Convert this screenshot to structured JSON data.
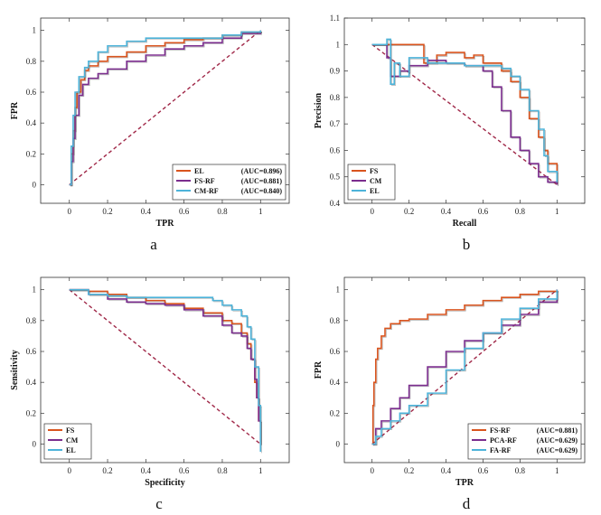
{
  "figure_labels": [
    "a",
    "b",
    "c",
    "d"
  ],
  "chart_data": [
    {
      "type": "line",
      "panel": "a",
      "xlabel": "TPR",
      "ylabel": "FPR",
      "xlim": [
        -0.15,
        1.15
      ],
      "ylim": [
        -0.12,
        1.08
      ],
      "xticks": [
        0,
        0.2,
        0.4,
        0.6,
        0.8,
        1
      ],
      "yticks": [
        0,
        0.2,
        0.4,
        0.6,
        0.8,
        1
      ],
      "tick_labels_x": [
        "0",
        "0.2",
        "0.4",
        "0.6",
        "0.8",
        "1"
      ],
      "tick_labels_y": [
        "0",
        "0.2",
        "0.4",
        "0.6",
        "0.8",
        "1"
      ],
      "legend_position": "bottom-right",
      "reference_line": {
        "x": [
          0,
          1
        ],
        "y": [
          0,
          1
        ],
        "color": "#a02848"
      },
      "series": [
        {
          "name": "EL",
          "annotation": "(AUC=0.896)",
          "color": "#d9541e",
          "x": [
            0,
            0.01,
            0.02,
            0.03,
            0.04,
            0.06,
            0.08,
            0.1,
            0.15,
            0.2,
            0.3,
            0.4,
            0.5,
            0.6,
            0.7,
            0.8,
            0.9,
            1.0
          ],
          "y": [
            0,
            0.2,
            0.35,
            0.5,
            0.6,
            0.68,
            0.74,
            0.77,
            0.8,
            0.83,
            0.86,
            0.9,
            0.92,
            0.94,
            0.95,
            0.97,
            0.99,
            1.0
          ]
        },
        {
          "name": "FS-RF",
          "annotation": "(AUC=0.881)",
          "color": "#7b2d8e",
          "x": [
            0,
            0.01,
            0.02,
            0.03,
            0.05,
            0.07,
            0.1,
            0.15,
            0.2,
            0.3,
            0.4,
            0.5,
            0.6,
            0.7,
            0.8,
            0.9,
            1.0
          ],
          "y": [
            0,
            0.15,
            0.3,
            0.45,
            0.58,
            0.65,
            0.69,
            0.72,
            0.75,
            0.8,
            0.84,
            0.88,
            0.9,
            0.92,
            0.95,
            0.98,
            1.0
          ]
        },
        {
          "name": "CM-RF",
          "annotation": "(AUC=0.840)",
          "color": "#4db3d9",
          "x": [
            0,
            0.01,
            0.02,
            0.03,
            0.05,
            0.08,
            0.1,
            0.15,
            0.2,
            0.3,
            0.4,
            0.5,
            0.6,
            0.7,
            0.8,
            0.9,
            1.0
          ],
          "y": [
            0,
            0.25,
            0.45,
            0.6,
            0.7,
            0.76,
            0.8,
            0.86,
            0.9,
            0.93,
            0.95,
            0.95,
            0.95,
            0.95,
            0.97,
            0.99,
            1.0
          ]
        }
      ]
    },
    {
      "type": "line",
      "panel": "b",
      "xlabel": "Recall",
      "ylabel": "Precision",
      "xlim": [
        -0.15,
        1.15
      ],
      "ylim": [
        0.4,
        1.1
      ],
      "xticks": [
        0,
        0.2,
        0.4,
        0.6,
        0.8,
        1
      ],
      "yticks": [
        0.4,
        0.5,
        0.6,
        0.7,
        0.8,
        0.9,
        1,
        1.1
      ],
      "tick_labels_x": [
        "0",
        "0.2",
        "0.4",
        "0.6",
        "0.8",
        "1"
      ],
      "tick_labels_y": [
        "0.4",
        "0.5",
        "0.6",
        "0.7",
        "0.8",
        "0.9",
        "1",
        "1.1"
      ],
      "legend_position": "bottom-left",
      "reference_line": {
        "x": [
          0,
          1
        ],
        "y": [
          1,
          0.47
        ],
        "color": "#a02848"
      },
      "series": [
        {
          "name": "FS",
          "color": "#d9541e",
          "x": [
            0,
            0.08,
            0.1,
            0.15,
            0.2,
            0.27,
            0.28,
            0.35,
            0.4,
            0.5,
            0.55,
            0.6,
            0.7,
            0.75,
            0.8,
            0.85,
            0.9,
            0.93,
            0.95,
            1.0
          ],
          "y": [
            1.0,
            1.0,
            1.0,
            1.0,
            1.0,
            1.0,
            0.93,
            0.96,
            0.97,
            0.95,
            0.96,
            0.93,
            0.9,
            0.86,
            0.8,
            0.72,
            0.65,
            0.6,
            0.55,
            0.47
          ]
        },
        {
          "name": "CM",
          "color": "#7b2d8e",
          "x": [
            0,
            0.08,
            0.1,
            0.15,
            0.2,
            0.3,
            0.4,
            0.5,
            0.6,
            0.65,
            0.7,
            0.75,
            0.8,
            0.85,
            0.9,
            0.95,
            1.0
          ],
          "y": [
            1.0,
            0.95,
            0.88,
            0.9,
            0.92,
            0.94,
            0.93,
            0.92,
            0.9,
            0.84,
            0.75,
            0.65,
            0.6,
            0.55,
            0.5,
            0.48,
            0.47
          ]
        },
        {
          "name": "EL",
          "color": "#4db3d9",
          "x": [
            0,
            0.08,
            0.1,
            0.12,
            0.15,
            0.2,
            0.3,
            0.4,
            0.5,
            0.6,
            0.7,
            0.75,
            0.8,
            0.85,
            0.9,
            0.93,
            0.95,
            1.0
          ],
          "y": [
            1.0,
            1.02,
            0.85,
            0.93,
            0.88,
            0.95,
            0.93,
            0.93,
            0.92,
            0.92,
            0.91,
            0.88,
            0.83,
            0.75,
            0.68,
            0.58,
            0.52,
            0.48
          ]
        }
      ]
    },
    {
      "type": "line",
      "panel": "c",
      "xlabel": "Specificity",
      "ylabel": "Sensitivity",
      "xlim": [
        -0.15,
        1.15
      ],
      "ylim": [
        -0.12,
        1.08
      ],
      "xticks": [
        0,
        0.2,
        0.4,
        0.6,
        0.8,
        1
      ],
      "yticks": [
        0,
        0.2,
        0.4,
        0.6,
        0.8,
        1
      ],
      "tick_labels_x": [
        "0",
        "0.2",
        "0.4",
        "0.6",
        "0.8",
        "1"
      ],
      "tick_labels_y": [
        "0",
        "0.2",
        "0.4",
        "0.6",
        "0.8",
        "1"
      ],
      "legend_position": "bottom-left",
      "reference_line": {
        "x": [
          0,
          1
        ],
        "y": [
          1,
          0
        ],
        "color": "#a02848"
      },
      "series": [
        {
          "name": "FS",
          "color": "#d9541e",
          "x": [
            0,
            0.1,
            0.2,
            0.3,
            0.4,
            0.5,
            0.6,
            0.7,
            0.8,
            0.85,
            0.9,
            0.93,
            0.95,
            0.97,
            0.98,
            0.99,
            1.0
          ],
          "y": [
            1.0,
            0.99,
            0.97,
            0.95,
            0.93,
            0.91,
            0.88,
            0.85,
            0.8,
            0.78,
            0.72,
            0.65,
            0.55,
            0.4,
            0.3,
            0.15,
            0.0
          ]
        },
        {
          "name": "CM",
          "color": "#7b2d8e",
          "x": [
            0,
            0.1,
            0.2,
            0.3,
            0.4,
            0.5,
            0.6,
            0.7,
            0.8,
            0.85,
            0.9,
            0.93,
            0.95,
            0.97,
            0.98,
            0.99,
            1.0
          ],
          "y": [
            1.0,
            0.97,
            0.94,
            0.92,
            0.91,
            0.9,
            0.87,
            0.83,
            0.77,
            0.72,
            0.7,
            0.62,
            0.55,
            0.42,
            0.3,
            0.15,
            0.0
          ]
        },
        {
          "name": "EL",
          "color": "#4db3d9",
          "x": [
            0,
            0.1,
            0.2,
            0.3,
            0.4,
            0.5,
            0.6,
            0.7,
            0.75,
            0.8,
            0.85,
            0.9,
            0.93,
            0.95,
            0.97,
            0.99,
            1.0
          ],
          "y": [
            1.0,
            0.97,
            0.96,
            0.95,
            0.95,
            0.95,
            0.95,
            0.95,
            0.93,
            0.9,
            0.87,
            0.83,
            0.76,
            0.68,
            0.5,
            0.25,
            -0.05
          ]
        }
      ]
    },
    {
      "type": "line",
      "panel": "d",
      "xlabel": "TPR",
      "ylabel": "FPR",
      "xlim": [
        -0.15,
        1.15
      ],
      "ylim": [
        -0.12,
        1.08
      ],
      "xticks": [
        0,
        0.2,
        0.4,
        0.6,
        0.8,
        1
      ],
      "yticks": [
        0,
        0.2,
        0.4,
        0.6,
        0.8,
        1
      ],
      "tick_labels_x": [
        "0",
        "0.2",
        "0.4",
        "0.6",
        "0.8",
        "1"
      ],
      "tick_labels_y": [
        "0",
        "0.2",
        "0.4",
        "0.6",
        "0.8",
        "1"
      ],
      "legend_position": "bottom-right",
      "reference_line": {
        "x": [
          0,
          1
        ],
        "y": [
          0,
          1
        ],
        "color": "#a02848"
      },
      "series": [
        {
          "name": "FS-RF",
          "annotation": "(AUC=0.881)",
          "color": "#d9541e",
          "x": [
            0,
            0.005,
            0.01,
            0.02,
            0.03,
            0.05,
            0.07,
            0.1,
            0.15,
            0.2,
            0.3,
            0.4,
            0.5,
            0.6,
            0.7,
            0.8,
            0.9,
            1.0
          ],
          "y": [
            0,
            0.25,
            0.4,
            0.55,
            0.62,
            0.7,
            0.75,
            0.78,
            0.8,
            0.81,
            0.84,
            0.87,
            0.9,
            0.93,
            0.95,
            0.97,
            0.99,
            1.0
          ]
        },
        {
          "name": "PCA-RF",
          "annotation": "(AUC=0.629)",
          "color": "#7b2d8e",
          "x": [
            0,
            0.02,
            0.05,
            0.1,
            0.15,
            0.2,
            0.3,
            0.4,
            0.5,
            0.6,
            0.7,
            0.8,
            0.9,
            1.0
          ],
          "y": [
            0,
            0.1,
            0.15,
            0.23,
            0.3,
            0.38,
            0.5,
            0.6,
            0.67,
            0.72,
            0.77,
            0.84,
            0.92,
            1.0
          ]
        },
        {
          "name": "FA-RF",
          "annotation": "(AUC=0.629)",
          "color": "#4db3d9",
          "x": [
            0,
            0.02,
            0.05,
            0.1,
            0.15,
            0.2,
            0.3,
            0.4,
            0.5,
            0.6,
            0.7,
            0.8,
            0.9,
            1.0
          ],
          "y": [
            0,
            0.05,
            0.1,
            0.15,
            0.2,
            0.25,
            0.33,
            0.48,
            0.62,
            0.72,
            0.81,
            0.88,
            0.94,
            1.0
          ]
        }
      ]
    }
  ]
}
